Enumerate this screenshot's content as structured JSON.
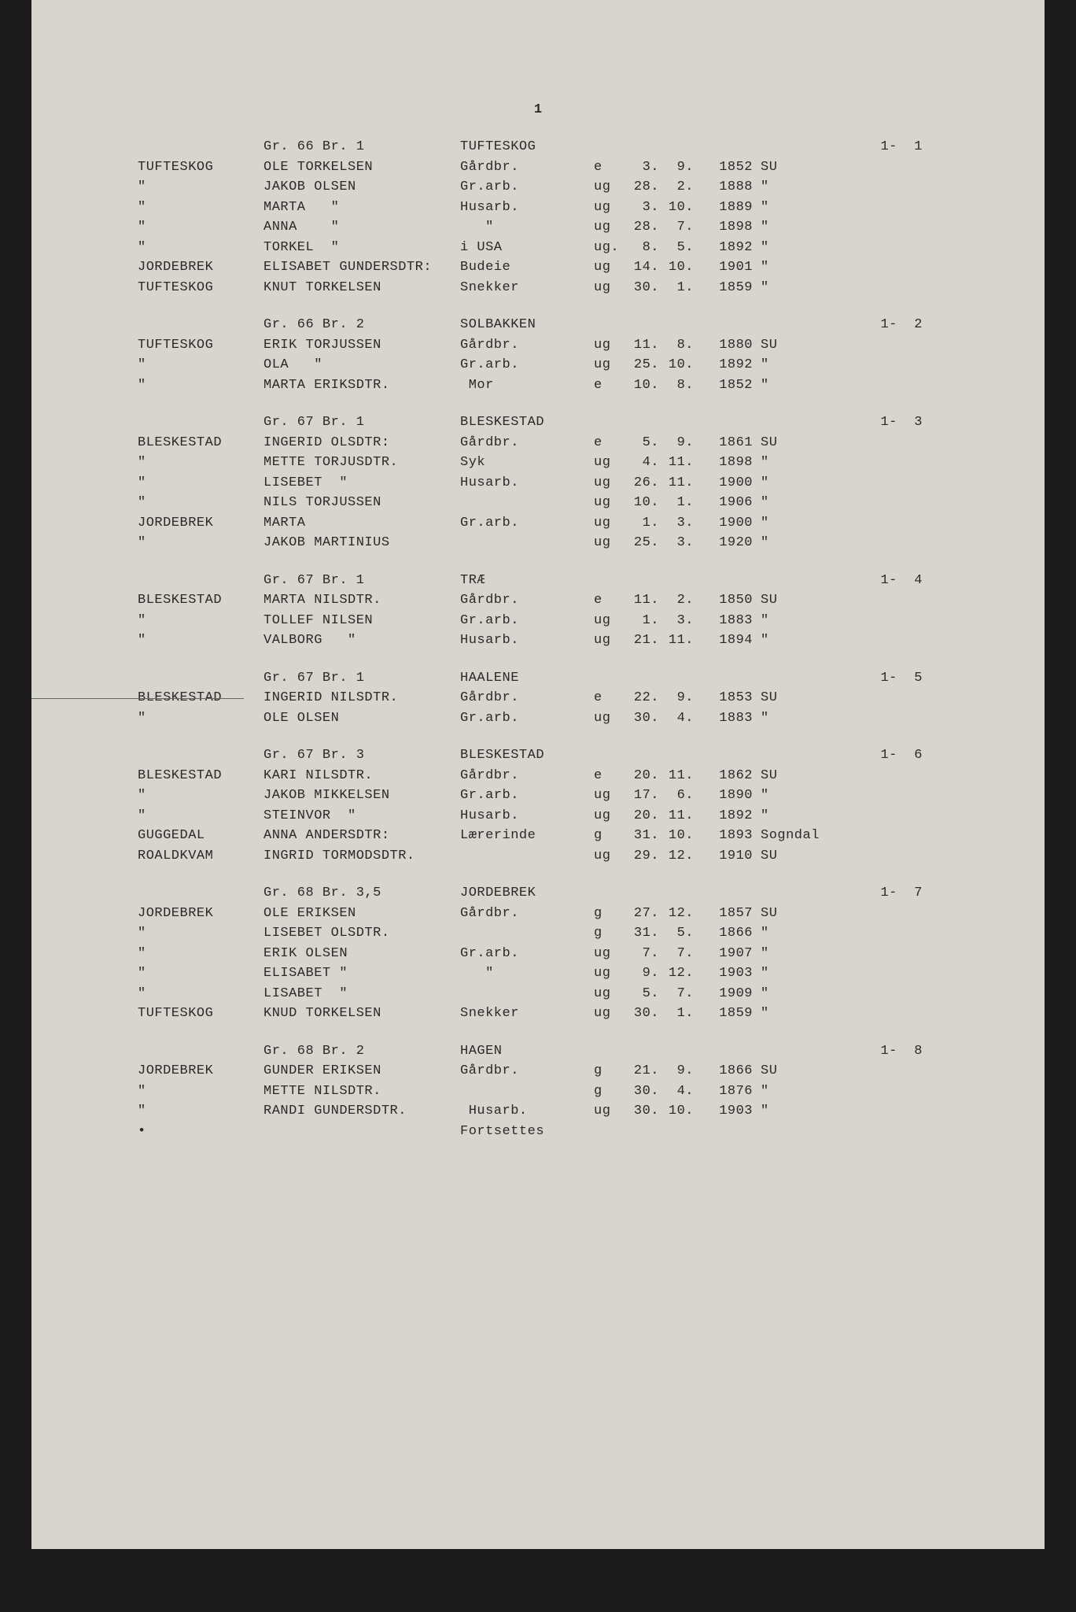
{
  "page_number": "1",
  "text_color": "#2a2a2a",
  "background_color": "#d8d4ce",
  "font_family": "Courier New",
  "font_size": 17,
  "sections": [
    {
      "header": {
        "gr": "Gr. 66 Br. 1",
        "place": "TUFTESKOG",
        "page_ref": "1-  1"
      },
      "rows": [
        {
          "farm": "TUFTESKOG",
          "name": "OLE TORKELSEN",
          "occ": "Gårdbr.",
          "status": "e",
          "day": "3.",
          "month": "9.",
          "year": "1852",
          "suffix": "SU"
        },
        {
          "farm": "\"",
          "name": "JAKOB OLSEN",
          "occ": "Gr.arb.",
          "status": "ug",
          "day": "28.",
          "month": "2.",
          "year": "1888",
          "suffix": "\""
        },
        {
          "farm": "\"",
          "name": "MARTA   \"",
          "occ": "Husarb.",
          "status": "ug",
          "day": "3.",
          "month": "10.",
          "year": "1889",
          "suffix": "\""
        },
        {
          "farm": "\"",
          "name": "ANNA    \"",
          "occ": "   \"",
          "status": "ug",
          "day": "28.",
          "month": "7.",
          "year": "1898",
          "suffix": "\""
        },
        {
          "farm": "\"",
          "name": "TORKEL  \"",
          "occ": "i USA",
          "status": "ug.",
          "day": "8.",
          "month": "5.",
          "year": "1892",
          "suffix": "\""
        },
        {
          "farm": "JORDEBREK",
          "name": "ELISABET GUNDERSDTR:",
          "occ": "Budeie",
          "status": "ug",
          "day": "14.",
          "month": "10.",
          "year": "1901",
          "suffix": "\""
        },
        {
          "farm": "TUFTESKOG",
          "name": "KNUT TORKELSEN",
          "occ": "Snekker",
          "status": "ug",
          "day": "30.",
          "month": "1.",
          "year": "1859",
          "suffix": "\""
        }
      ]
    },
    {
      "header": {
        "gr": "Gr. 66 Br. 2",
        "place": "SOLBAKKEN",
        "page_ref": "1-  2"
      },
      "rows": [
        {
          "farm": "TUFTESKOG",
          "name": "ERIK TORJUSSEN",
          "occ": "Gårdbr.",
          "status": "ug",
          "day": "11.",
          "month": "8.",
          "year": "1880",
          "suffix": "SU"
        },
        {
          "farm": "\"",
          "name": "OLA   \"",
          "occ": "Gr.arb.",
          "status": "ug",
          "day": "25.",
          "month": "10.",
          "year": "1892",
          "suffix": "\""
        },
        {
          "farm": "\"",
          "name": "MARTA ERIKSDTR.",
          "occ": " Mor",
          "status": "e",
          "day": "10.",
          "month": "8.",
          "year": "1852",
          "suffix": "\""
        }
      ]
    },
    {
      "header": {
        "gr": "Gr. 67 Br. 1",
        "place": "BLESKESTAD",
        "page_ref": "1-  3"
      },
      "rows": [
        {
          "farm": "BLESKESTAD",
          "name": "INGERID OLSDTR:",
          "occ": "Gårdbr.",
          "status": "e",
          "day": "5.",
          "month": "9.",
          "year": "1861",
          "suffix": "SU"
        },
        {
          "farm": "\"",
          "name": "METTE TORJUSDTR.",
          "occ": "Syk",
          "status": "ug",
          "day": "4.",
          "month": "11.",
          "year": "1898",
          "suffix": "\""
        },
        {
          "farm": "\"",
          "name": "LISEBET  \"",
          "occ": "Husarb.",
          "status": "ug",
          "day": "26.",
          "month": "11.",
          "year": "1900",
          "suffix": "\""
        },
        {
          "farm": "\"",
          "name": "NILS TORJUSSEN",
          "occ": "",
          "status": "ug",
          "day": "10.",
          "month": "1.",
          "year": "1906",
          "suffix": "\""
        },
        {
          "farm": "JORDEBREK",
          "name": "MARTA",
          "occ": "Gr.arb.",
          "status": "ug",
          "day": "1.",
          "month": "3.",
          "year": "1900",
          "suffix": "\""
        },
        {
          "farm": "\"",
          "name": "JAKOB MARTINIUS",
          "occ": "",
          "status": "ug",
          "day": "25.",
          "month": "3.",
          "year": "1920",
          "suffix": "\""
        }
      ]
    },
    {
      "header": {
        "gr": "Gr. 67 Br. 1",
        "place": "TRÆ",
        "page_ref": "1-  4"
      },
      "rows": [
        {
          "farm": "BLESKESTAD",
          "name": "MARTA NILSDTR.",
          "occ": "Gårdbr.",
          "status": "e",
          "day": "11.",
          "month": "2.",
          "year": "1850",
          "suffix": "SU"
        },
        {
          "farm": "\"",
          "name": "TOLLEF NILSEN",
          "occ": "Gr.arb.",
          "status": "ug",
          "day": "1.",
          "month": "3.",
          "year": "1883",
          "suffix": "\""
        },
        {
          "farm": "\"",
          "name": "VALBORG   \"",
          "occ": "Husarb.",
          "status": "ug",
          "day": "21.",
          "month": "11.",
          "year": "1894",
          "suffix": "\""
        }
      ]
    },
    {
      "header": {
        "gr": "Gr. 67 Br. 1",
        "place": "HAALENE",
        "page_ref": "1-  5"
      },
      "rows": [
        {
          "farm": "BLESKESTAD",
          "name": "INGERID NILSDTR.",
          "occ": "Gårdbr.",
          "status": "e",
          "day": "22.",
          "month": "9.",
          "year": "1853",
          "suffix": "SU"
        },
        {
          "farm": "\"",
          "name": "OLE OLSEN",
          "occ": "Gr.arb.",
          "status": "ug",
          "day": "30.",
          "month": "4.",
          "year": "1883",
          "suffix": "\""
        }
      ]
    },
    {
      "header": {
        "gr": "Gr. 67 Br. 3",
        "place": "BLESKESTAD",
        "page_ref": "1-  6"
      },
      "rows": [
        {
          "farm": "BLESKESTAD",
          "name": "KARI NILSDTR.",
          "occ": "Gårdbr.",
          "status": "e",
          "day": "20.",
          "month": "11.",
          "year": "1862",
          "suffix": "SU"
        },
        {
          "farm": "\"",
          "name": "JAKOB MIKKELSEN",
          "occ": "Gr.arb.",
          "status": "ug",
          "day": "17.",
          "month": "6.",
          "year": "1890",
          "suffix": "\""
        },
        {
          "farm": "\"",
          "name": "STEINVOR  \"",
          "occ": "Husarb.",
          "status": "ug",
          "day": "20.",
          "month": "11.",
          "year": "1892",
          "suffix": "\""
        },
        {
          "farm": "GUGGEDAL",
          "name": "ANNA ANDERSDTR:",
          "occ": "Lærerinde",
          "status": "g",
          "day": "31.",
          "month": "10.",
          "year": "1893",
          "suffix": "Sogndal"
        },
        {
          "farm": "ROALDKVAM",
          "name": "INGRID TORMODSDTR.",
          "occ": "",
          "status": "ug",
          "day": "29.",
          "month": "12.",
          "year": "1910",
          "suffix": "SU"
        }
      ]
    },
    {
      "header": {
        "gr": "Gr. 68 Br. 3,5",
        "place": "JORDEBREK",
        "page_ref": "1-  7"
      },
      "rows": [
        {
          "farm": "JORDEBREK",
          "name": "OLE ERIKSEN",
          "occ": "Gårdbr.",
          "status": "g",
          "day": "27.",
          "month": "12.",
          "year": "1857",
          "suffix": "SU"
        },
        {
          "farm": "\"",
          "name": "LISEBET OLSDTR.",
          "occ": "",
          "status": "g",
          "day": "31.",
          "month": "5.",
          "year": "1866",
          "suffix": "\""
        },
        {
          "farm": "\"",
          "name": "ERIK OLSEN",
          "occ": "Gr.arb.",
          "status": "ug",
          "day": "7.",
          "month": "7.",
          "year": "1907",
          "suffix": "\""
        },
        {
          "farm": "\"",
          "name": "ELISABET \"",
          "occ": "   \"",
          "status": "ug",
          "day": "9.",
          "month": "12.",
          "year": "1903",
          "suffix": "\""
        },
        {
          "farm": "\"",
          "name": "LISABET  \"",
          "occ": "",
          "status": "ug",
          "day": "5.",
          "month": "7.",
          "year": "1909",
          "suffix": "\""
        },
        {
          "farm": "TUFTESKOG",
          "name": "KNUD TORKELSEN",
          "occ": "Snekker",
          "status": "ug",
          "day": "30.",
          "month": "1.",
          "year": "1859",
          "suffix": "\""
        }
      ]
    },
    {
      "header": {
        "gr": "Gr. 68 Br. 2",
        "place": "HAGEN",
        "page_ref": "1-  8"
      },
      "rows": [
        {
          "farm": "JORDEBREK",
          "name": "GUNDER ERIKSEN",
          "occ": "Gårdbr.",
          "status": "g",
          "day": "21.",
          "month": "9.",
          "year": "1866",
          "suffix": "SU"
        },
        {
          "farm": "\"",
          "name": "METTE NILSDTR.",
          "occ": "",
          "status": "g",
          "day": "30.",
          "month": "4.",
          "year": "1876",
          "suffix": "\""
        },
        {
          "farm": "\"",
          "name": "RANDI GUNDERSDTR.",
          "occ": " Husarb.",
          "status": "ug",
          "day": "30.",
          "month": "10.",
          "year": "1903",
          "suffix": "\""
        },
        {
          "farm": "•",
          "name": "",
          "occ": "Fortsettes",
          "status": "",
          "day": "",
          "month": "",
          "year": "",
          "suffix": ""
        }
      ]
    }
  ]
}
